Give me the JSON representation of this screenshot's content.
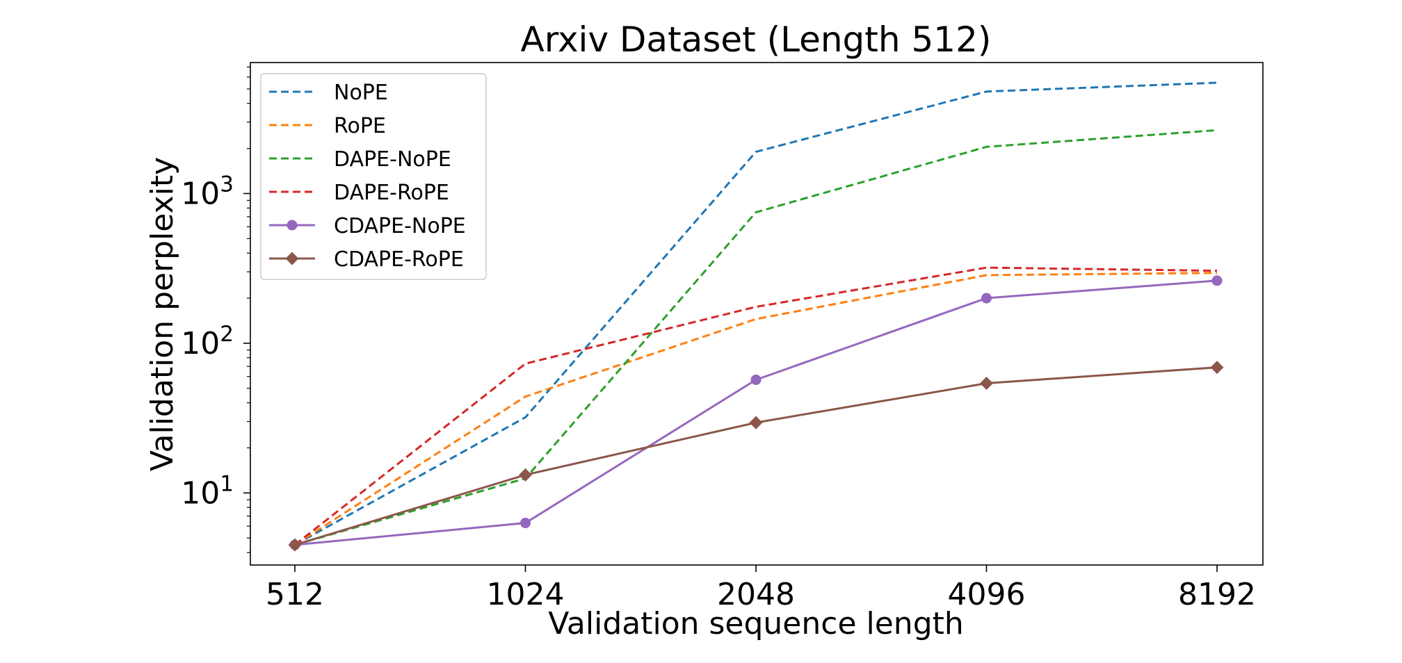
{
  "chart_data": {
    "type": "line",
    "title": "Arxiv Dataset (Length 512)",
    "xlabel": "Validation sequence length",
    "ylabel": "Validation perplexity",
    "x_scale": "log2",
    "y_scale": "log10",
    "x": [
      512,
      1024,
      2048,
      4096,
      8192
    ],
    "x_tick_labels": [
      "512",
      "1024",
      "2048",
      "4096",
      "8192"
    ],
    "y_ticks": [
      {
        "value": 10,
        "base": "10",
        "exp": "1"
      },
      {
        "value": 100,
        "base": "10",
        "exp": "2"
      },
      {
        "value": 1000,
        "base": "10",
        "exp": "3"
      }
    ],
    "ylim": [
      3.3,
      7500
    ],
    "legend_position": "upper-left",
    "grid": false,
    "series": [
      {
        "name": "NoPE",
        "color": "#1f77b4",
        "style": "dashed",
        "marker": "none",
        "values": [
          4.5,
          32,
          1900,
          4800,
          5500
        ]
      },
      {
        "name": "RoPE",
        "color": "#ff7f0e",
        "style": "dashed",
        "marker": "none",
        "values": [
          4.5,
          44,
          145,
          285,
          295
        ]
      },
      {
        "name": "DAPE-NoPE",
        "color": "#2ca02c",
        "style": "dashed",
        "marker": "none",
        "values": [
          4.5,
          12.5,
          750,
          2050,
          2650
        ]
      },
      {
        "name": "DAPE-RoPE",
        "color": "#d62728",
        "style": "dashed",
        "marker": "none",
        "values": [
          4.5,
          73,
          175,
          320,
          305
        ]
      },
      {
        "name": "CDAPE-NoPE",
        "color": "#9467bd",
        "style": "solid",
        "marker": "circle",
        "values": [
          4.5,
          6.3,
          57,
          200,
          262
        ]
      },
      {
        "name": "CDAPE-RoPE",
        "color": "#8c564b",
        "style": "solid",
        "marker": "diamond",
        "values": [
          4.5,
          13.2,
          29.5,
          54,
          69
        ]
      }
    ]
  }
}
